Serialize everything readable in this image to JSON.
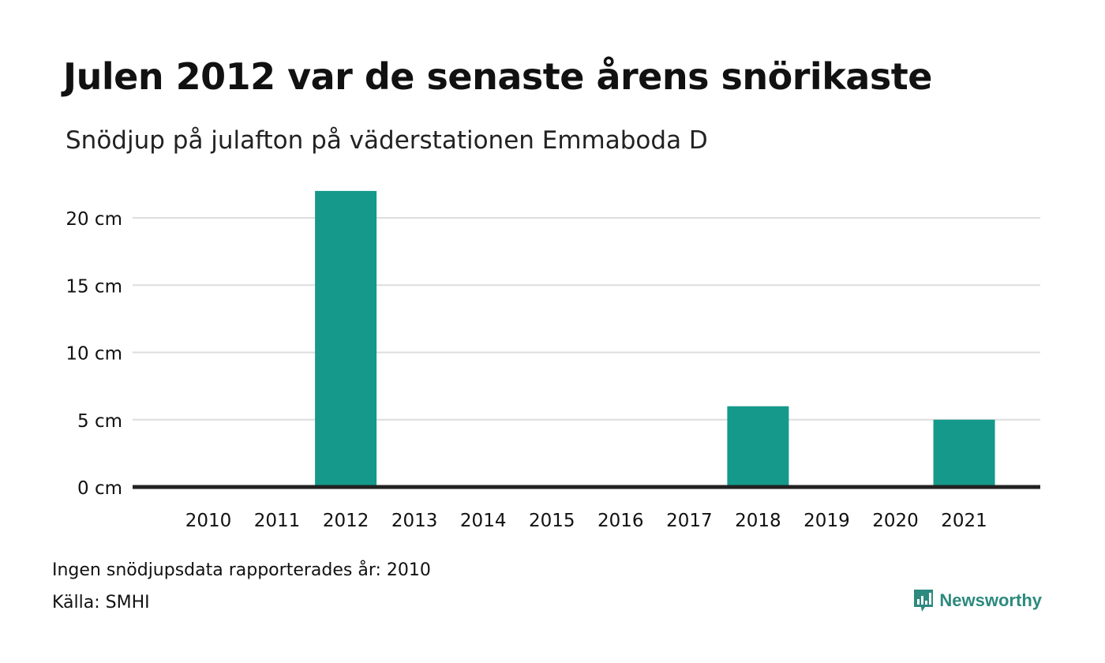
{
  "header": {
    "title": "Julen 2012 var de senaste årens snörikaste",
    "subtitle": "Snödjup på julafton på väderstationen Emmaboda D"
  },
  "footer": {
    "note": "Ingen snödjupsdata rapporterades år: 2010",
    "source": "Källa: SMHI",
    "brand": "Newsworthy",
    "brand_icon": "bar-chart-speech-bubble-icon"
  },
  "colors": {
    "bar": "#14998a",
    "grid": "#dddddd",
    "baseline": "#222222",
    "brand": "#2c8a7e"
  },
  "chart_data": {
    "type": "bar",
    "title": "Julen 2012 var de senaste årens snörikaste",
    "subtitle": "Snödjup på julafton på väderstationen Emmaboda D",
    "categories": [
      "2010",
      "2011",
      "2012",
      "2013",
      "2014",
      "2015",
      "2016",
      "2017",
      "2018",
      "2019",
      "2020",
      "2021"
    ],
    "values": [
      null,
      0,
      22,
      0,
      0,
      0,
      0,
      0,
      6,
      0,
      0,
      5
    ],
    "unit": "cm",
    "ylim": [
      0,
      20
    ],
    "yticks": [
      0,
      5,
      10,
      15,
      20
    ],
    "ytick_labels": [
      "0 cm",
      "5 cm",
      "10 cm",
      "15 cm",
      "20 cm"
    ],
    "xlabel": "",
    "ylabel": "",
    "grid": true,
    "legend": "none"
  }
}
